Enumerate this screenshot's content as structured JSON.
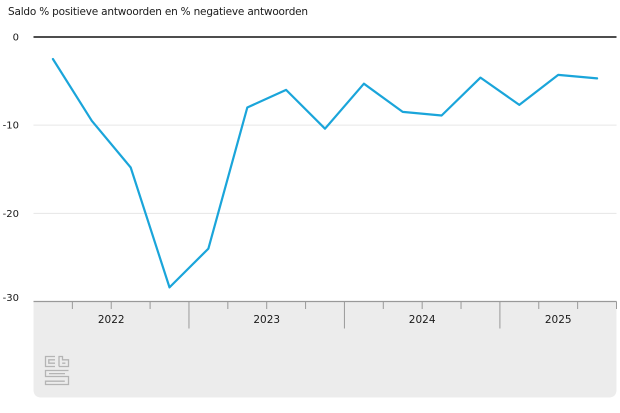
{
  "title": "Saldo % positieve antwoorden en % negatieve antwoorden",
  "chart_data": {
    "type": "line",
    "title": "Saldo % positieve antwoorden en % negatieve antwoorden",
    "categories": [
      "2022-Q1",
      "2022-Q2",
      "2022-Q3",
      "2022-Q4",
      "2023-Q1",
      "2023-Q2",
      "2023-Q3",
      "2023-Q4",
      "2024-Q1",
      "2024-Q2",
      "2024-Q3",
      "2024-Q4",
      "2025-Q1",
      "2025-Q2",
      "2025-Q3"
    ],
    "series": [
      {
        "name": "Saldo % positieve antwoorden en % negatieve antwoorden",
        "values": [
          -2.5,
          -9.5,
          -14.8,
          -28.4,
          -24.0,
          -8.0,
          -6.0,
          -10.4,
          -5.3,
          -8.5,
          -8.9,
          -4.6,
          -7.7,
          -4.3,
          -4.7
        ]
      }
    ],
    "x_year_labels": [
      "2022",
      "2023",
      "2024",
      "2025"
    ],
    "y_ticks": [
      0,
      -10,
      -20,
      -30
    ],
    "ylim": [
      -30,
      0
    ],
    "xlabel": "",
    "ylabel": "",
    "legend": "none",
    "grid": "horizontal-light",
    "line_color": "#1aa5da"
  },
  "colors": {
    "line": "#1aa5da",
    "zero_line": "#4d4d4d",
    "gridline": "#e6e6e6",
    "axis_band": "#ececec",
    "axis_border": "#999999",
    "tick": "#999999",
    "text": "#1a1a1a",
    "logo": "#b4b4b4"
  },
  "logo": {
    "name": "cbs-logo"
  }
}
